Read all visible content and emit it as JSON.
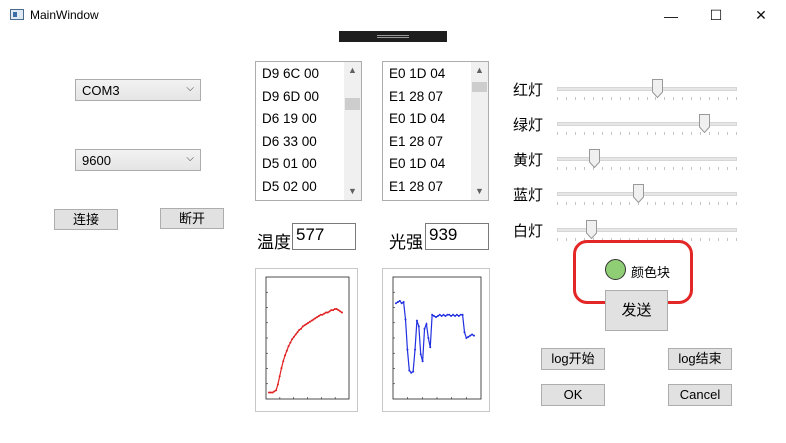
{
  "window": {
    "title": "MainWindow",
    "minimize": "—",
    "maximize": "☐",
    "close": "✕"
  },
  "serial": {
    "port": "COM3",
    "baud": "9600",
    "connect_label": "连接",
    "disconnect_label": "断开"
  },
  "list_left": [
    "D9 6C 00",
    "D9 6D 00",
    "D6 19 00",
    "D6 33 00",
    "D5 01 00",
    "D5 02 00"
  ],
  "list_right": [
    "E0 1D 04",
    "E1 28 07",
    "E0 1D 04",
    "E1 28 07",
    "E0 1D 04",
    "E1 28 07"
  ],
  "sensors": {
    "temp_label": "温度",
    "temp_value": "577",
    "light_label": "光强",
    "light_value": "939"
  },
  "sliders": [
    {
      "label": "红灯",
      "value": 0.56
    },
    {
      "label": "绿灯",
      "value": 0.84
    },
    {
      "label": "黄灯",
      "value": 0.19
    },
    {
      "label": "蓝灯",
      "value": 0.45
    },
    {
      "label": "白灯",
      "value": 0.17
    }
  ],
  "color_block": {
    "label": "颜色块",
    "color": "#8fce74"
  },
  "buttons": {
    "send": "发送",
    "log_start": "log开始",
    "log_end": "log结束",
    "ok": "OK",
    "cancel": "Cancel"
  },
  "colors": {
    "temp_series": "#e02020",
    "light_series": "#2030e0",
    "highlight": "#e32626"
  },
  "chart_data": [
    {
      "type": "line",
      "title": "",
      "xlabel": "",
      "ylabel": "",
      "series": [
        {
          "values": [
            0.03,
            0.03,
            0.03,
            0.04,
            0.05,
            0.1,
            0.17,
            0.24,
            0.3,
            0.35,
            0.39,
            0.43,
            0.46,
            0.49,
            0.51,
            0.53,
            0.55,
            0.57,
            0.58,
            0.6,
            0.61,
            0.62,
            0.63,
            0.64,
            0.65,
            0.66,
            0.67,
            0.68,
            0.69,
            0.7,
            0.7,
            0.71,
            0.72,
            0.72,
            0.73,
            0.74,
            0.74,
            0.75,
            0.75,
            0.74,
            0.73,
            0.72
          ]
        }
      ]
    },
    {
      "type": "line",
      "title": "",
      "xlabel": "",
      "ylabel": "",
      "series": [
        {
          "values": [
            0.8,
            0.81,
            0.82,
            0.8,
            0.81,
            0.66,
            0.4,
            0.22,
            0.2,
            0.21,
            0.4,
            0.65,
            0.6,
            0.36,
            0.3,
            0.58,
            0.62,
            0.5,
            0.42,
            0.7,
            0.69,
            0.68,
            0.69,
            0.7,
            0.69,
            0.7,
            0.69,
            0.7,
            0.7,
            0.69,
            0.7,
            0.69,
            0.7,
            0.69,
            0.7,
            0.7,
            0.55,
            0.5,
            0.51,
            0.52,
            0.53,
            0.52
          ]
        }
      ]
    }
  ]
}
